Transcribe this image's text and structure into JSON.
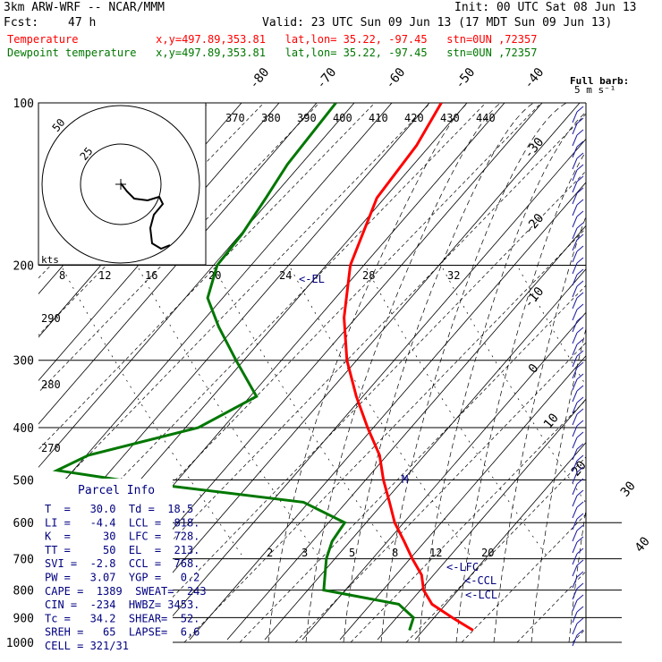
{
  "header": {
    "model": "3km ARW-WRF -- NCAR/MMM",
    "init": "Init: 00 UTC Sat 08 Jun 13",
    "fcst_label": "Fcst:",
    "fcst_value": "47 h",
    "valid": "Valid: 23 UTC Sun 09 Jun 13 (17 MDT Sun 09 Jun 13)",
    "temp_line": "Temperature            x,y=497.89,353.81   lat,lon= 35.22, -97.45   stn=0UN ,72357",
    "dew_line": "Dewpoint temperature   x,y=497.89,353.81   lat,lon= 35.22, -97.45   stn=0UN ,72357",
    "temp_color": "#ff0000",
    "dew_color": "#007700"
  },
  "chart_data": {
    "type": "line",
    "title": "Skew-T",
    "y_axis": "pressure (hPa), log scale",
    "pressure_ticks": [
      100,
      200,
      300,
      400,
      500,
      600,
      700,
      800,
      900,
      1000
    ],
    "temp_tick_labels": [
      -80,
      -70,
      -60,
      -50,
      -40,
      -30,
      -20,
      -10,
      0,
      10,
      20,
      30,
      40
    ],
    "theta_labels": [
      370,
      380,
      390,
      400,
      410,
      420,
      430,
      440
    ],
    "theta_e_labels": [
      "290",
      "280",
      "270"
    ],
    "mixing_ratio_labels_upper": [
      "8",
      "12",
      "16",
      "20",
      "24",
      "28",
      "32"
    ],
    "mixing_ratio_labels_lower": [
      "2",
      "3",
      "5",
      "8",
      "12",
      "20"
    ],
    "hodograph": {
      "unit": "kts",
      "ring_labels": [
        "25",
        "50"
      ]
    },
    "series": [
      {
        "name": "Temperature",
        "color": "#ff0000",
        "points": [
          {
            "p": 100,
            "t": -68.0
          },
          {
            "p": 120,
            "t": -65.0
          },
          {
            "p": 150,
            "t": -63.0
          },
          {
            "p": 200,
            "t": -56.0
          },
          {
            "p": 250,
            "t": -48.0
          },
          {
            "p": 300,
            "t": -40.0
          },
          {
            "p": 350,
            "t": -32.0
          },
          {
            "p": 400,
            "t": -24.5
          },
          {
            "p": 450,
            "t": -17.5
          },
          {
            "p": 500,
            "t": -12.5
          },
          {
            "p": 550,
            "t": -7.5
          },
          {
            "p": 600,
            "t": -3.0
          },
          {
            "p": 650,
            "t": 2.0
          },
          {
            "p": 700,
            "t": 6.5
          },
          {
            "p": 750,
            "t": 11.0
          },
          {
            "p": 800,
            "t": 14.0
          },
          {
            "p": 850,
            "t": 18.0
          },
          {
            "p": 900,
            "t": 24.0
          },
          {
            "p": 950,
            "t": 30.0
          }
        ]
      },
      {
        "name": "Dewpoint temperature",
        "color": "#007700",
        "points": [
          {
            "p": 100,
            "t": -87.0
          },
          {
            "p": 130,
            "t": -85.0
          },
          {
            "p": 150,
            "t": -83.0
          },
          {
            "p": 175,
            "t": -81.0
          },
          {
            "p": 200,
            "t": -80.0
          },
          {
            "p": 230,
            "t": -76.0
          },
          {
            "p": 260,
            "t": -69.0
          },
          {
            "p": 300,
            "t": -60.0
          },
          {
            "p": 350,
            "t": -50.0
          },
          {
            "p": 400,
            "t": -55.0
          },
          {
            "p": 450,
            "t": -70.0
          },
          {
            "p": 480,
            "t": -73.0
          },
          {
            "p": 500,
            "t": -60.0
          },
          {
            "p": 550,
            "t": -23.0
          },
          {
            "p": 600,
            "t": -12.0
          },
          {
            "p": 650,
            "t": -11.0
          },
          {
            "p": 700,
            "t": -9.0
          },
          {
            "p": 800,
            "t": -4.0
          },
          {
            "p": 850,
            "t": 12.0
          },
          {
            "p": 900,
            "t": 17.0
          },
          {
            "p": 950,
            "t": 18.5
          }
        ]
      }
    ],
    "levels_marked": [
      "<-EL",
      "<-LFC",
      "<-CCL",
      "<-LCL",
      "M"
    ]
  },
  "parcel_info": {
    "title": "Parcel Info",
    "rows": [
      "T  =   30.0  Td =  18.5",
      "LI =   -4.4  LCL =  818.",
      "K  =     30  LFC =  728.",
      "TT =     50  EL  =  213.",
      "SVI =  -2.8  CCL =  768.",
      "PW =   3.07  YGP =   0.2",
      "CAPE =  1389  SWEAT=  243",
      "CIN =  -234  HWBZ= 3453.",
      "Tc =   34.2  SHEAR=  52.",
      "SREH =   65  LAPSE=  6.6",
      "CELL = 321/31"
    ]
  },
  "wind_legend": {
    "line1": "Full barb:",
    "line2": "5 m s⁻¹"
  },
  "colors": {
    "temperature": "#ff0000",
    "dewpoint": "#007700",
    "guides": "#000000",
    "labels": "#000080"
  }
}
